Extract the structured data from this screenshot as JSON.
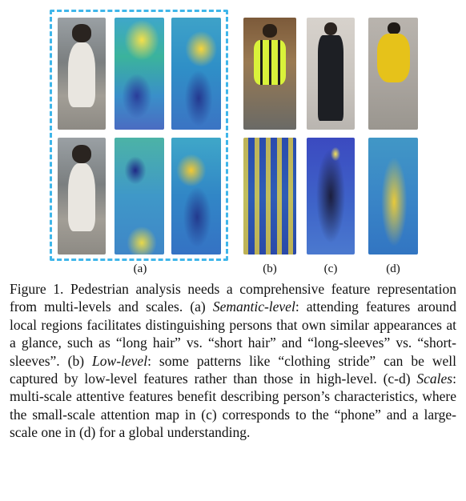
{
  "subfigures": {
    "a": "(a)",
    "b": "(b)",
    "c": "(c)",
    "d": "(d)"
  },
  "caption": {
    "s1": "Figure 1.  Pedestrian analysis needs a comprehensive feature representation from multi-levels and scales. (a) ",
    "s2": "Semantic-level",
    "s3": ": attending features around local regions facilitates distinguishing persons that own similar appearances at a glance, such as “long hair” vs. “short hair” and “long-sleeves” vs. “short-sleeves”. (b) ",
    "s4": "Low-level",
    "s5": ": some patterns like “clothing stride” can be well captured by low-level features rather than those in high-level. (c-d) ",
    "s6": "Scales",
    "s7": ": multi-scale attentive features benefit describing person’s characteristics, where the small-scale attention map in (c) corresponds to the “phone” and a large-scale one in (d) for a global understanding."
  },
  "colors": {
    "dash_box": "#3fb6ea"
  }
}
